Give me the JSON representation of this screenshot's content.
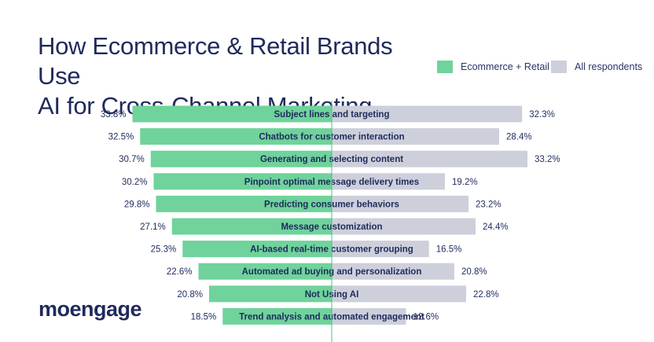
{
  "title_line1": "How Ecommerce & Retail Brands Use",
  "title_line2": "AI for Cross-Channel Marketing",
  "logo_text": "moengage",
  "colors": {
    "ecommerce": "#6fd39b",
    "all": "#cdd0db",
    "text": "#1f2a5c",
    "axis": "#4bbf86"
  },
  "chart_data": {
    "type": "bar",
    "orientation": "horizontal-diverging",
    "categories": [
      "Subject lines and targeting",
      "Chatbots for customer interaction",
      "Generating and selecting content",
      "Pinpoint optimal message delivery times",
      "Predicting consumer behaviors",
      "Message customization",
      "AI-based real-time customer grouping",
      "Automated ad buying and personalization",
      "Not Using AI",
      "Trend analysis and automated engagement"
    ],
    "series": [
      {
        "name": "Ecommerce + Retail",
        "values": [
          33.8,
          32.5,
          30.7,
          30.2,
          29.8,
          27.1,
          25.3,
          22.6,
          20.8,
          18.5
        ],
        "labels": [
          "33.8%",
          "32.5%",
          "30.7%",
          "30.2%",
          "29.8%",
          "27.1%",
          "25.3%",
          "22.6%",
          "20.8%",
          "18.5%"
        ],
        "color": "#6fd39b",
        "side": "left"
      },
      {
        "name": "All respondents",
        "values": [
          32.3,
          28.4,
          33.2,
          19.2,
          23.2,
          24.4,
          16.5,
          20.8,
          22.8,
          12.6
        ],
        "labels": [
          "32.3%",
          "28.4%",
          "33.2%",
          "19.2%",
          "23.2%",
          "24.4%",
          "16.5%",
          "20.8%",
          "22.8%",
          "12.6%"
        ],
        "color": "#cdd0db",
        "side": "right"
      }
    ],
    "legend_position": "top-right",
    "grid": false
  }
}
